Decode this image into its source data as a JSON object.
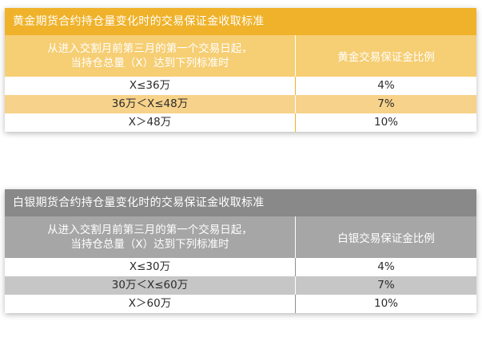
{
  "gold": {
    "title": "黄金期货合约持仓量变化时的交易保证金收取标准",
    "header": {
      "col1_line1": "从进入交割月前第三月的第一个交易日起，",
      "col1_line2": "当持仓总量（X）达到下列标准时",
      "col2": "黄金交易保证金比例"
    },
    "rows": [
      {
        "range": "X≤36万",
        "rate": "4%"
      },
      {
        "range": "36万＜X≤48万",
        "rate": "7%"
      },
      {
        "range": "X＞48万",
        "rate": "10%"
      }
    ]
  },
  "silver": {
    "title": "白银期货合约持仓量变化时的交易保证金收取标准",
    "header": {
      "col1_line1": "从进入交割月前第三月的第一个交易日起，",
      "col1_line2": "当持仓总量（X）达到下列标准时",
      "col2": "白银交易保证金比例"
    },
    "rows": [
      {
        "range": "X≤30万",
        "rate": "4%"
      },
      {
        "range": "30万＜X≤60万",
        "rate": "7%"
      },
      {
        "range": "X＞60万",
        "rate": "10%"
      }
    ]
  },
  "colors": {
    "gold_title": "#efb22a",
    "gold_header": "#f6ce73",
    "gold_alt_row": "#f7d28a",
    "silver_title": "#898989",
    "silver_header": "#a6a6a6",
    "silver_alt_row": "#c6c6c6"
  }
}
